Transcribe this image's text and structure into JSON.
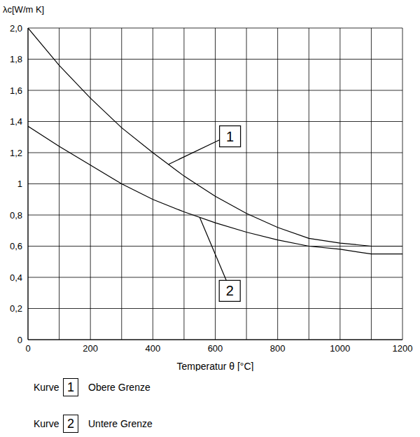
{
  "chart_data": {
    "type": "line",
    "xlabel": "Temperatur θ [°C]",
    "ylabel": "λc[W/m K]",
    "x": [
      0,
      100,
      200,
      300,
      400,
      500,
      600,
      700,
      800,
      900,
      1000,
      1100,
      1200
    ],
    "series": [
      {
        "name": "Obere Grenze",
        "color": "#000000",
        "values": [
          2.0,
          1.76,
          1.55,
          1.36,
          1.2,
          1.05,
          0.92,
          0.81,
          0.72,
          0.65,
          0.62,
          0.6,
          0.6
        ]
      },
      {
        "name": "Untere Grenze",
        "color": "#000000",
        "values": [
          1.37,
          1.24,
          1.12,
          1.0,
          0.9,
          0.82,
          0.75,
          0.69,
          0.64,
          0.6,
          0.58,
          0.55,
          0.55
        ]
      }
    ],
    "xlim": [
      0,
      1200
    ],
    "xticks": [
      0,
      {
        "value": 100,
        "label": null
      },
      200,
      {
        "value": 300,
        "label": null
      },
      400,
      {
        "value": 500,
        "label": null
      },
      600,
      {
        "value": 700,
        "label": null
      },
      800,
      {
        "value": 900,
        "label": null
      },
      1000,
      {
        "value": 1100,
        "label": null
      },
      1200
    ],
    "ylim": [
      0,
      2
    ],
    "yticks": [
      0,
      {
        "value": 0.2,
        "label": "0,2"
      },
      {
        "value": 0.4,
        "label": "0,4"
      },
      {
        "value": 0.6,
        "label": "0,6"
      },
      {
        "value": 0.8,
        "label": "0,8"
      },
      1,
      {
        "value": 1.2,
        "label": "1,2"
      },
      {
        "value": 1.4,
        "label": "1,4"
      },
      {
        "value": 1.6,
        "label": "1,6"
      },
      {
        "value": 1.8,
        "label": "1,8"
      },
      {
        "value": 2,
        "label": "2,0"
      }
    ],
    "grid": true,
    "legend": "bottom left",
    "legend_title": "Kurve",
    "annotations": [
      {
        "text": "1",
        "series": "Obere Grenze",
        "x": 450
      },
      {
        "text": "2",
        "series": "Untere Grenze",
        "x": 550
      }
    ]
  }
}
